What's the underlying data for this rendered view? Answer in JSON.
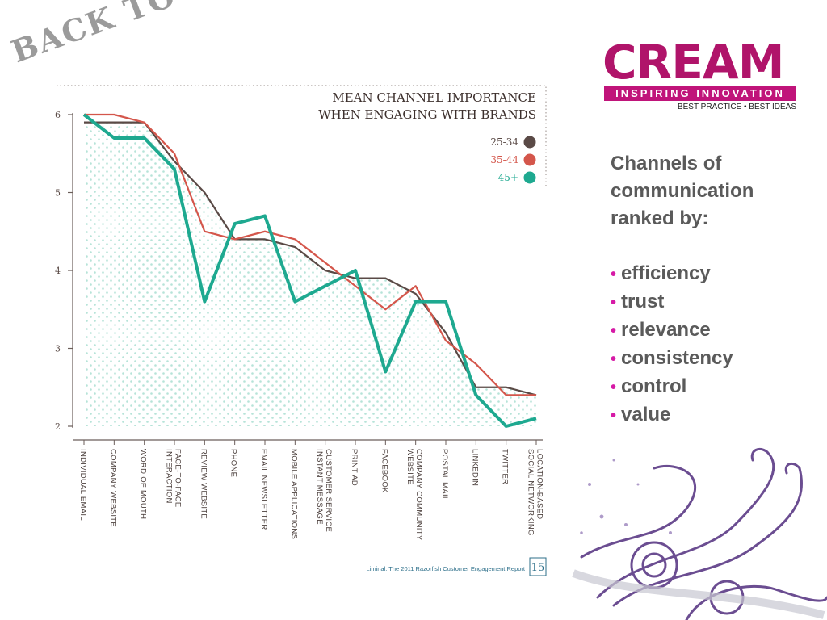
{
  "stamp": "BACK TO BASICS",
  "logo": {
    "word": "CREAM",
    "bar": "INSPIRING INNOVATION",
    "tagline": "BEST PRACTICE • BEST IDEAS"
  },
  "side": {
    "heading": [
      "Channels of",
      "communication",
      "ranked by:"
    ],
    "items": [
      "efficiency",
      "trust",
      "relevance",
      "consistency",
      "control",
      "value"
    ]
  },
  "chart_data": {
    "type": "line",
    "title": [
      "MEAN CHANNEL IMPORTANCE",
      "WHEN ENGAGING WITH BRANDS"
    ],
    "categories": [
      [
        "INDIVIDUAL EMAIL"
      ],
      [
        "COMPANY WEBSITE"
      ],
      [
        "WORD OF MOUTH"
      ],
      [
        "FACE-TO-FACE",
        "INTERACTION"
      ],
      [
        "REVIEW WEBSITE"
      ],
      [
        "PHONE"
      ],
      [
        "EMAIL NEWSLETTER"
      ],
      [
        "MOBILE APPLICATIONS"
      ],
      [
        "CUSTOMER SERVICE",
        "INSTANT MESSAGE"
      ],
      [
        "PRINT AD"
      ],
      [
        "FACEBOOK"
      ],
      [
        "COMPANY COMMUNITY",
        "WEBSITE"
      ],
      [
        "POSTAL MAIL"
      ],
      [
        "LINKEDIN"
      ],
      [
        "TWITTER"
      ],
      [
        "LOCATION-BASED",
        "SOCIAL NETWORKING"
      ]
    ],
    "ylim": [
      2,
      6
    ],
    "yticks": [
      2,
      3,
      4,
      5,
      6
    ],
    "series": [
      {
        "name": "25-34",
        "color": "#5a4a46",
        "values": [
          5.9,
          5.9,
          5.9,
          5.4,
          5.0,
          4.4,
          4.4,
          4.3,
          4.0,
          3.9,
          3.9,
          3.7,
          3.2,
          2.5,
          2.5,
          2.4
        ]
      },
      {
        "name": "35-44",
        "color": "#d4564b",
        "values": [
          6.0,
          6.0,
          5.9,
          5.5,
          4.5,
          4.4,
          4.5,
          4.4,
          4.1,
          3.8,
          3.5,
          3.8,
          3.1,
          2.8,
          2.4,
          2.4
        ]
      },
      {
        "name": "45+",
        "color": "#1ea990",
        "values": [
          6.0,
          5.7,
          5.7,
          5.3,
          3.6,
          4.6,
          4.7,
          3.6,
          3.8,
          4.0,
          2.7,
          3.6,
          3.6,
          2.4,
          2.0,
          2.1
        ]
      }
    ],
    "source": "Liminal: The 2011 Razorfish Customer Engagement Report",
    "page_number": "15"
  }
}
